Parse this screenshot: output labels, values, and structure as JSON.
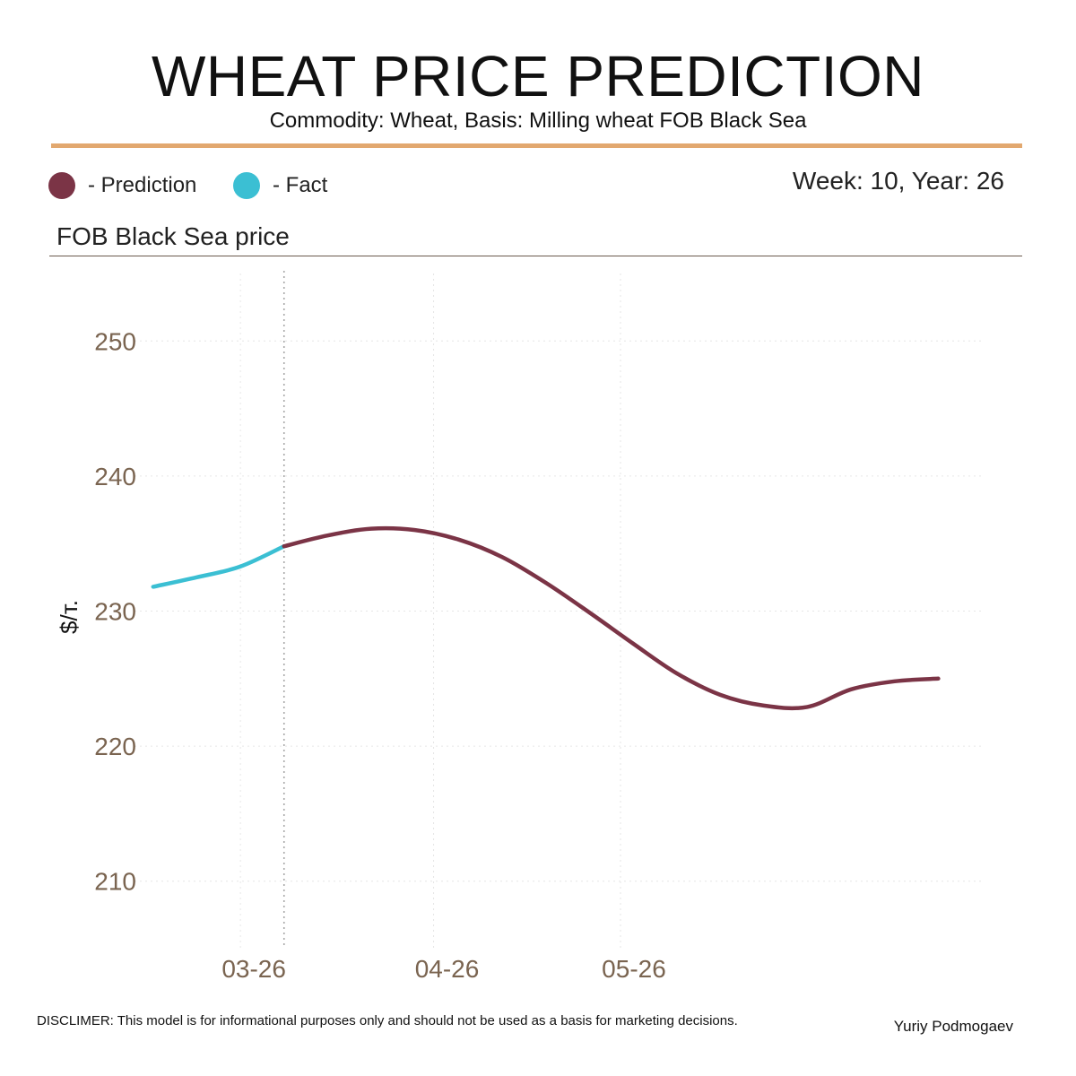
{
  "header": {
    "title": "WHEAT PRICE PREDICTION",
    "subtitle": "Commodity: Wheat, Basis: Milling wheat FOB Black Sea"
  },
  "legend": {
    "prediction_label": "- Prediction",
    "fact_label": "- Fact"
  },
  "week_label": "Week: 10, Year: 26",
  "panel_title": "FOB Black Sea price",
  "colors": {
    "prediction": "#7b3446",
    "fact": "#3bbfd3",
    "accent": "#e2a86f",
    "axis_text": "#7a6450"
  },
  "chart_data": {
    "type": "line",
    "ylabel": "$/т.",
    "ylim": [
      205,
      255
    ],
    "yticks": [
      210,
      220,
      230,
      240,
      250
    ],
    "xlim": [
      "2026-02-12",
      "2026-06-28"
    ],
    "xticks": [
      {
        "label": "03-26",
        "date": "2026-03-01"
      },
      {
        "label": "04-26",
        "date": "2026-04-01"
      },
      {
        "label": "05-26",
        "date": "2026-05-01"
      }
    ],
    "forecast_start": "2026-03-08",
    "series": [
      {
        "name": "Fact",
        "points": [
          {
            "x": "2026-02-15",
            "y": 231.8
          },
          {
            "x": "2026-02-22",
            "y": 232.5
          },
          {
            "x": "2026-03-01",
            "y": 233.3
          },
          {
            "x": "2026-03-08",
            "y": 234.8
          }
        ]
      },
      {
        "name": "Prediction",
        "points": [
          {
            "x": "2026-03-08",
            "y": 234.8
          },
          {
            "x": "2026-03-15",
            "y": 235.6
          },
          {
            "x": "2026-03-22",
            "y": 236.1
          },
          {
            "x": "2026-03-29",
            "y": 236.0
          },
          {
            "x": "2026-04-05",
            "y": 235.3
          },
          {
            "x": "2026-04-12",
            "y": 234.0
          },
          {
            "x": "2026-04-19",
            "y": 232.1
          },
          {
            "x": "2026-04-26",
            "y": 229.9
          },
          {
            "x": "2026-05-03",
            "y": 227.6
          },
          {
            "x": "2026-05-10",
            "y": 225.4
          },
          {
            "x": "2026-05-17",
            "y": 223.8
          },
          {
            "x": "2026-05-24",
            "y": 223.0
          },
          {
            "x": "2026-05-31",
            "y": 222.9
          },
          {
            "x": "2026-06-07",
            "y": 224.2
          },
          {
            "x": "2026-06-14",
            "y": 224.8
          },
          {
            "x": "2026-06-21",
            "y": 225.0
          }
        ]
      }
    ]
  },
  "footer": {
    "disclaimer": "DISCLIMER:  This model is for informational purposes only and should not be used as a basis for marketing decisions.",
    "author": "Yuriy Podmogaev"
  }
}
